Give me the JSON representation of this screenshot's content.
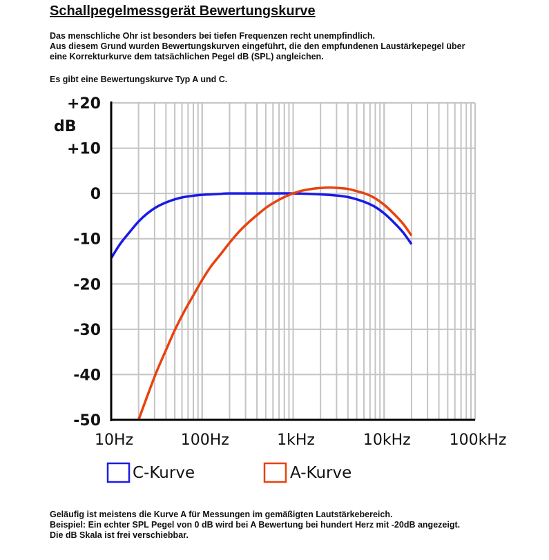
{
  "title": "Schallpegelmessgerät Bewertungskurve",
  "intro": [
    "Das menschliche Ohr ist besonders bei tiefen Frequenzen recht unempfindlich.",
    "Aus diesem Grund wurden Bewertungskurven eingeführt, die den empfundenen Laustärkepegel über",
    "eine Korrekturkurve dem tatsächlichen Pegel dB (SPL) angleichen."
  ],
  "intro2": "Es gibt eine Bewertungskurve Typ A und C.",
  "outro": [
    "Geläufig ist meistens die Kurve A für Messungen im gemäßigten Lautstärkebereich.",
    "Beispiel: Ein echter SPL Pegel von 0 dB wird bei A Bewertung bei hundert Herz mit -20dB angezeigt.",
    "Die dB Skala ist frei verschiebbar."
  ],
  "chart_data": {
    "type": "line",
    "title": "",
    "xlabel": "",
    "ylabel": "dB",
    "xscale": "log",
    "xlim": [
      10,
      100000
    ],
    "ylim": [
      -50,
      20
    ],
    "grid": true,
    "legend_placement": "bottom-left",
    "x_ticks": [
      {
        "value": 10,
        "label": "10Hz"
      },
      {
        "value": 100,
        "label": "100Hz"
      },
      {
        "value": 1000,
        "label": "1kHz"
      },
      {
        "value": 10000,
        "label": "10kHz"
      },
      {
        "value": 100000,
        "label": "100kHz"
      }
    ],
    "y_ticks": [
      {
        "value": 20,
        "label": "+20"
      },
      {
        "value": 10,
        "label": "+10"
      },
      {
        "value": 0,
        "label": "0"
      },
      {
        "value": -10,
        "label": "-10"
      },
      {
        "value": -20,
        "label": "-20"
      },
      {
        "value": -30,
        "label": "-30"
      },
      {
        "value": -40,
        "label": "-40"
      },
      {
        "value": -50,
        "label": "-50"
      }
    ],
    "series": [
      {
        "name": "C-Kurve",
        "color": "#1a1ae6",
        "x": [
          10,
          12.5,
          16,
          20,
          25,
          31.5,
          40,
          50,
          63,
          80,
          100,
          125,
          160,
          200,
          500,
          1000,
          2000,
          3150,
          4000,
          5000,
          6300,
          8000,
          10000,
          12500,
          16000,
          20000
        ],
        "y": [
          -14.3,
          -11.2,
          -8.5,
          -6.2,
          -4.4,
          -3.0,
          -2.0,
          -1.3,
          -0.8,
          -0.5,
          -0.3,
          -0.2,
          -0.1,
          0,
          0,
          0,
          -0.2,
          -0.5,
          -0.8,
          -1.3,
          -2.0,
          -3.0,
          -4.4,
          -6.2,
          -8.5,
          -11.2
        ]
      },
      {
        "name": "A-Kurve",
        "color": "#e8420f",
        "x": [
          20,
          25,
          31.5,
          40,
          50,
          63,
          80,
          100,
          125,
          160,
          200,
          250,
          315,
          400,
          500,
          630,
          800,
          1000,
          1250,
          1600,
          2000,
          2500,
          3150,
          4000,
          5000,
          6300,
          8000,
          10000,
          12500,
          16000,
          20000
        ],
        "y": [
          -50.5,
          -44.7,
          -39.4,
          -34.6,
          -30.2,
          -26.2,
          -22.5,
          -19.1,
          -16.1,
          -13.4,
          -10.9,
          -8.6,
          -6.6,
          -4.8,
          -3.2,
          -1.9,
          -0.8,
          0,
          0.6,
          1.0,
          1.2,
          1.3,
          1.2,
          1.0,
          0.5,
          -0.1,
          -1.1,
          -2.5,
          -4.3,
          -6.6,
          -9.3
        ]
      }
    ]
  }
}
